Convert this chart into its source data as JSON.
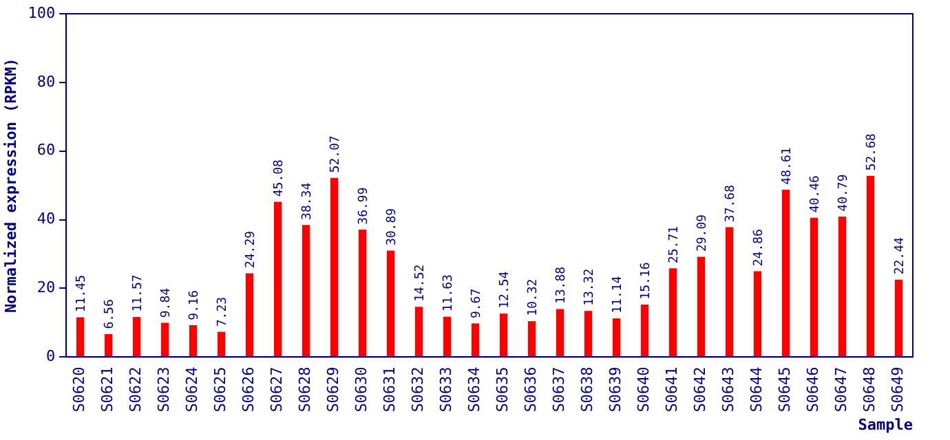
{
  "chart_data": {
    "type": "bar",
    "xlabel": "Sample",
    "ylabel": "Normalized expression (RPKM)",
    "categories": [
      "S0620",
      "S0621",
      "S0622",
      "S0623",
      "S0624",
      "S0625",
      "S0626",
      "S0627",
      "S0628",
      "S0629",
      "S0630",
      "S0631",
      "S0632",
      "S0633",
      "S0634",
      "S0635",
      "S0636",
      "S0637",
      "S0638",
      "S0639",
      "S0640",
      "S0641",
      "S0642",
      "S0643",
      "S0644",
      "S0645",
      "S0646",
      "S0647",
      "S0648",
      "S0649"
    ],
    "values": [
      11.45,
      6.56,
      11.57,
      9.84,
      9.16,
      7.23,
      24.29,
      45.08,
      38.34,
      52.07,
      36.99,
      30.89,
      14.52,
      11.63,
      9.67,
      12.54,
      10.32,
      13.88,
      13.32,
      11.14,
      15.16,
      25.71,
      29.09,
      37.68,
      24.86,
      48.61,
      40.46,
      40.79,
      52.68,
      22.44
    ],
    "color": "#ff0000",
    "ylim": [
      0,
      100
    ],
    "yticks": [
      0,
      20,
      40,
      60,
      80,
      100
    ],
    "grid": false,
    "legend": false,
    "data_labels": true
  }
}
